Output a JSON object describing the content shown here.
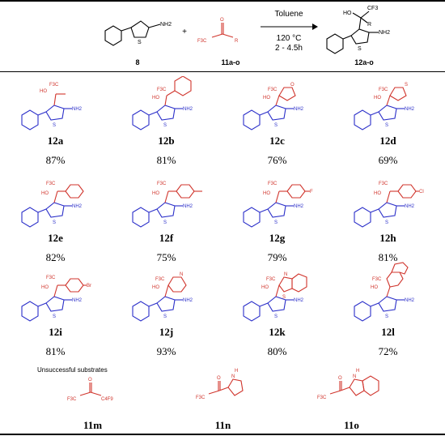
{
  "header": {
    "amine_label": "8",
    "plus": "+",
    "ketone_label": "11a-o",
    "product_label": "12a-o",
    "solvent": "Toluene",
    "temperature": "120 °C",
    "time": "2 - 4.5h",
    "atoms": {
      "nh2": "NH2",
      "s": "S",
      "o": "O",
      "f3c": "F3C",
      "r": "R",
      "ho": "HO",
      "cf3": "CF3"
    }
  },
  "products": [
    {
      "id": "12a",
      "yield": "87%",
      "substituent": "methyl"
    },
    {
      "id": "12b",
      "yield": "81%",
      "substituent": "benzyl"
    },
    {
      "id": "12c",
      "yield": "76%",
      "substituent": "2-furyl"
    },
    {
      "id": "12d",
      "yield": "69%",
      "substituent": "2-thienyl"
    },
    {
      "id": "12e",
      "yield": "82%",
      "substituent": "phenyl"
    },
    {
      "id": "12f",
      "yield": "75%",
      "substituent": "4-methylphenyl"
    },
    {
      "id": "12g",
      "yield": "79%",
      "substituent": "4-fluorophenyl",
      "halogen": "F"
    },
    {
      "id": "12h",
      "yield": "81%",
      "substituent": "4-chlorophenyl",
      "halogen": "Cl"
    },
    {
      "id": "12i",
      "yield": "81%",
      "substituent": "4-bromophenyl",
      "halogen": "Br"
    },
    {
      "id": "12j",
      "yield": "93%",
      "substituent": "2-pyridyl",
      "n": "N"
    },
    {
      "id": "12k",
      "yield": "80%",
      "substituent": "2-benzothiazolyl",
      "n": "N",
      "s": "S"
    },
    {
      "id": "12l",
      "yield": "72%",
      "substituent": "1-naphthyl"
    }
  ],
  "unsuccessful": {
    "title": "Unsuccessful substrates",
    "items": [
      {
        "id": "11m",
        "formula_left": "F3C",
        "formula_right": "C4F9",
        "o": "O"
      },
      {
        "id": "11n",
        "nh": "H",
        "n": "N",
        "formula_left": "F3C",
        "o": "O"
      },
      {
        "id": "11o",
        "nh": "H",
        "n": "N",
        "formula_left": "F3C",
        "o": "O"
      }
    ]
  },
  "colors": {
    "core": "#2b2fc9",
    "added": "#d0342c"
  }
}
